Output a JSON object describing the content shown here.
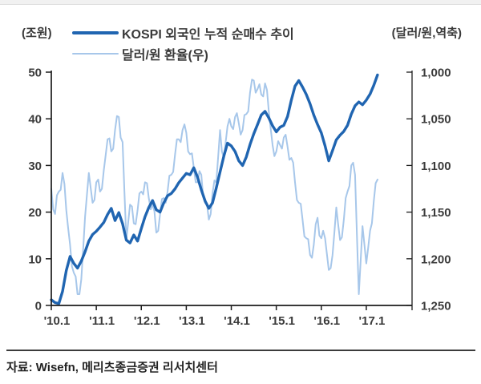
{
  "source": "자료: Wisefn, 메리츠종금증권 리서치센터",
  "legend": {
    "items": [
      {
        "label": "KOSPI 외국인 누적 순매수 추이",
        "color": "#2065b1"
      },
      {
        "label": "달러/원 환율(우)",
        "color": "#a7c7ea"
      }
    ]
  },
  "chart_data": {
    "type": "line",
    "title": "",
    "grid": false,
    "legend_position": "top-left",
    "x_axis": {
      "min": 2010.083,
      "max": 2018.1,
      "ticks": [
        {
          "x": 2010.083,
          "label": "'10.1"
        },
        {
          "x": 2011.083,
          "label": "'11.1"
        },
        {
          "x": 2012.083,
          "label": "'12.1"
        },
        {
          "x": 2013.083,
          "label": "'13.1"
        },
        {
          "x": 2014.083,
          "label": "'14.1"
        },
        {
          "x": 2015.083,
          "label": "'15.1"
        },
        {
          "x": 2016.083,
          "label": "'16.1"
        },
        {
          "x": 2017.083,
          "label": "'17.1"
        }
      ]
    },
    "left_axis": {
      "title": "(조원)",
      "min": 0,
      "max": 50,
      "ticks": [
        0,
        10,
        20,
        30,
        40,
        50
      ]
    },
    "right_axis": {
      "title": "(달러/원,역축)",
      "min": 1000,
      "max": 1250,
      "inverted": true,
      "ticks": [
        {
          "v": 1000,
          "label": "1,000"
        },
        {
          "v": 1050,
          "label": "1,050"
        },
        {
          "v": 1100,
          "label": "1,100"
        },
        {
          "v": 1150,
          "label": "1,150"
        },
        {
          "v": 1200,
          "label": "1,200"
        },
        {
          "v": 1250,
          "label": "1,250"
        }
      ]
    },
    "series": [
      {
        "name": "KOSPI 외국인 누적 순매수 추이",
        "axis": "left",
        "color": "#2065b1",
        "stroke_width": 3.4,
        "x_start": 2010.083,
        "x_step": 0.083333,
        "values": [
          1.2,
          0.6,
          0.4,
          3.0,
          7.5,
          10.5,
          9.0,
          8.0,
          9.5,
          11.5,
          13.8,
          15.2,
          15.9,
          16.8,
          17.8,
          19.5,
          20.8,
          18.2,
          19.9,
          17.5,
          14.0,
          13.4,
          15.1,
          13.8,
          16.5,
          19.0,
          21.0,
          22.5,
          20.5,
          20.0,
          22.0,
          23.5,
          24.0,
          25.0,
          26.3,
          27.3,
          28.3,
          28.0,
          29.5,
          27.5,
          24.8,
          22.4,
          20.8,
          22.0,
          25.2,
          28.6,
          32.0,
          34.8,
          34.2,
          33.0,
          31.0,
          30.0,
          31.8,
          34.5,
          36.8,
          38.8,
          40.8,
          41.6,
          40.2,
          38.5,
          37.2,
          38.2,
          38.6,
          40.5,
          44.0,
          47.0,
          48.2,
          46.8,
          45.2,
          43.2,
          40.8,
          38.8,
          37.0,
          34.2,
          31.0,
          33.2,
          35.5,
          36.5,
          37.3,
          38.6,
          41.0,
          42.8,
          43.6,
          43.0,
          44.0,
          45.3,
          47.2,
          49.4
        ]
      },
      {
        "name": "달러/원 환율(우)",
        "axis": "right",
        "color": "#a7c7ea",
        "stroke_width": 2,
        "x_start": 2010.083,
        "x_step": 0.041667,
        "values": [
          1125,
          1147,
          1152,
          1132,
          1128,
          1126,
          1108,
          1120,
          1148,
          1167,
          1185,
          1208,
          1215,
          1219,
          1238,
          1238,
          1222,
          1189,
          1155,
          1132,
          1108,
          1124,
          1140,
          1137,
          1118,
          1115,
          1128,
          1125,
          1105,
          1089,
          1072,
          1071,
          1085,
          1082,
          1062,
          1047,
          1048,
          1070,
          1075,
          1128,
          1180,
          1161,
          1142,
          1144,
          1162,
          1163,
          1148,
          1130,
          1128,
          1131,
          1118,
          1119,
          1135,
          1147,
          1142,
          1149,
          1172,
          1170,
          1152,
          1136,
          1135,
          1140,
          1128,
          1111,
          1110,
          1107,
          1088,
          1072,
          1072,
          1075,
          1062,
          1056,
          1065,
          1085,
          1088,
          1087,
          1102,
          1118,
          1118,
          1106,
          1110,
          1133,
          1140,
          1141,
          1158,
          1152,
          1130,
          1116,
          1118,
          1090,
          1062,
          1085,
          1092,
          1075,
          1058,
          1050,
          1058,
          1061,
          1048,
          1044,
          1055,
          1067,
          1062,
          1046,
          1045,
          1042,
          1022,
          1008,
          1009,
          1022,
          1018,
          1013,
          1024,
          1026,
          1012,
          1019,
          1042,
          1060,
          1078,
          1090,
          1085,
          1074,
          1078,
          1082,
          1070,
          1067,
          1080,
          1094,
          1092,
          1097,
          1118,
          1137,
          1140,
          1141,
          1158,
          1176,
          1178,
          1179,
          1196,
          1199,
          1185,
          1163,
          1156,
          1175,
          1178,
          1170,
          1178,
          1195,
          1212,
          1210,
          1196,
          1171,
          1145,
          1163,
          1180,
          1177,
          1158,
          1135,
          1128,
          1122,
          1100,
          1097,
          1110,
          1174,
          1238,
          1202,
          1165,
          1185,
          1205,
          1188,
          1170,
          1162,
          1138,
          1119,
          1115
        ]
      }
    ]
  }
}
